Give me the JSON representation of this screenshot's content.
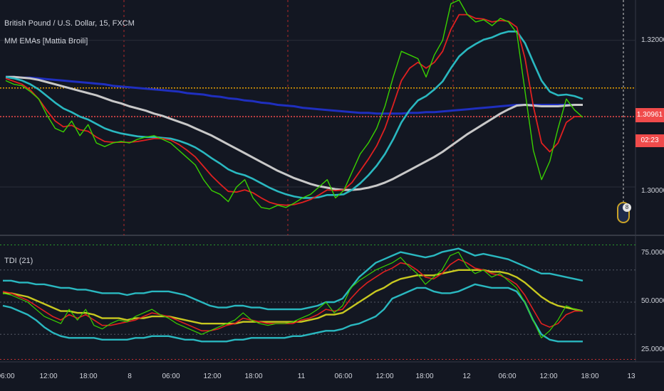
{
  "header": {
    "symbol_title": "British Pound / U.S. Dollar, 15, FXCM",
    "indicator_1": "MM EMAs [Mattia Broili]",
    "indicator_2": "TDI (21)"
  },
  "price_panel": {
    "y_axis_labels": [
      "1.32000",
      "1.30000"
    ],
    "current_price": "1.30961",
    "countdown": "02:23",
    "event_badge": "8"
  },
  "tdi_panel": {
    "y_axis_labels": [
      "75.0000",
      "50.0000",
      "25.0000"
    ]
  },
  "x_axis_labels": [
    "06:00",
    "12:00",
    "18:00",
    "8",
    "06:00",
    "12:00",
    "18:00",
    "11",
    "06:00",
    "12:00",
    "18:00",
    "12",
    "06:00",
    "12:00",
    "18:00",
    "13"
  ],
  "colors": {
    "background": "#131722",
    "price_line_green": "#39d000",
    "ema_red": "#e02020",
    "ema_teal": "#2ab8c0",
    "ema_blue": "#1f2fbf",
    "ema_white": "#c8c8c8",
    "tdi_yellow": "#c8c820",
    "resistance_orange": "#e8a000",
    "price_red_dotted": "#f04b4b"
  },
  "chart_data": [
    {
      "type": "line",
      "title": "British Pound / U.S. Dollar, 15, FXCM",
      "x_ticks": [
        "06:00",
        "12:00",
        "18:00",
        "8",
        "06:00",
        "12:00",
        "18:00",
        "11",
        "06:00",
        "12:00",
        "18:00",
        "12",
        "06:00",
        "12:00",
        "18:00",
        "13"
      ],
      "ylim": [
        1.2935,
        1.3255
      ],
      "y_ticks": [
        1.3,
        1.32
      ],
      "series": [
        {
          "key": "price",
          "values": [
            1.3145,
            1.314,
            1.3138,
            1.313,
            1.312,
            1.3098,
            1.308,
            1.3075,
            1.309,
            1.307,
            1.3085,
            1.306,
            1.3055,
            1.306,
            1.3062,
            1.306,
            1.3065,
            1.3068,
            1.307,
            1.3065,
            1.306,
            1.305,
            1.304,
            1.303,
            1.301,
            1.2995,
            1.299,
            1.298,
            1.3,
            1.301,
            1.2985,
            1.2972,
            1.297,
            1.2975,
            1.2972,
            1.2978,
            1.2985,
            1.299,
            1.3,
            1.301,
            1.2985,
            1.2995,
            1.302,
            1.3045,
            1.306,
            1.308,
            1.311,
            1.315,
            1.3185,
            1.318,
            1.3175,
            1.315,
            1.318,
            1.32,
            1.325,
            1.3255,
            1.3235,
            1.3225,
            1.3228,
            1.322,
            1.323,
            1.3225,
            1.321,
            1.313,
            1.305,
            1.301,
            1.3035,
            1.308,
            1.312,
            1.3105,
            1.3095
          ]
        },
        {
          "key": "ema_red",
          "values": [
            1.3148,
            1.3144,
            1.314,
            1.3132,
            1.312,
            1.3104,
            1.309,
            1.3082,
            1.3084,
            1.3078,
            1.3076,
            1.3068,
            1.3062,
            1.3061,
            1.3061,
            1.3061,
            1.3062,
            1.3064,
            1.3066,
            1.3066,
            1.3064,
            1.3058,
            1.305,
            1.3041,
            1.3028,
            1.3015,
            1.3004,
            1.2994,
            1.2993,
            1.2996,
            1.2992,
            1.2985,
            1.2979,
            1.2976,
            1.2975,
            1.2976,
            1.2979,
            1.2983,
            1.2989,
            1.2996,
            1.2995,
            1.2996,
            1.3006,
            1.3022,
            1.3038,
            1.3056,
            1.308,
            1.3112,
            1.3145,
            1.3162,
            1.317,
            1.3162,
            1.317,
            1.3185,
            1.3215,
            1.3235,
            1.3235,
            1.323,
            1.3229,
            1.3225,
            1.3227,
            1.3226,
            1.3218,
            1.3175,
            1.311,
            1.306,
            1.3048,
            1.306,
            1.3088,
            1.3096,
            1.3096
          ]
        },
        {
          "key": "ema_teal",
          "values": [
            1.315,
            1.3148,
            1.3145,
            1.314,
            1.3133,
            1.3124,
            1.3115,
            1.3107,
            1.3102,
            1.3096,
            1.3092,
            1.3086,
            1.308,
            1.3076,
            1.3073,
            1.3071,
            1.3069,
            1.3068,
            1.3068,
            1.3067,
            1.3066,
            1.3063,
            1.3059,
            1.3054,
            1.3047,
            1.3039,
            1.3032,
            1.3024,
            1.3019,
            1.3016,
            1.3011,
            1.3005,
            1.2999,
            1.2994,
            1.299,
            1.2987,
            1.2985,
            1.2985,
            1.2986,
            1.2989,
            1.2989,
            1.299,
            1.2996,
            1.3005,
            1.3016,
            1.3029,
            1.3045,
            1.3065,
            1.3088,
            1.3105,
            1.3118,
            1.3124,
            1.3133,
            1.3144,
            1.3162,
            1.3178,
            1.3188,
            1.3195,
            1.3201,
            1.3204,
            1.3209,
            1.3212,
            1.3212,
            1.3196,
            1.317,
            1.3145,
            1.313,
            1.3125,
            1.3126,
            1.3124,
            1.312
          ]
        },
        {
          "key": "ema_white",
          "values": [
            1.315,
            1.315,
            1.3149,
            1.3148,
            1.3146,
            1.3143,
            1.314,
            1.3137,
            1.3134,
            1.3131,
            1.3128,
            1.3125,
            1.3121,
            1.3117,
            1.3114,
            1.311,
            1.3107,
            1.3104,
            1.31,
            1.3097,
            1.3093,
            1.3089,
            1.3085,
            1.308,
            1.3075,
            1.307,
            1.3064,
            1.3058,
            1.3052,
            1.3046,
            1.304,
            1.3034,
            1.3028,
            1.3022,
            1.3017,
            1.3012,
            1.3008,
            1.3004,
            1.3001,
            1.2999,
            1.2997,
            1.2996,
            1.2996,
            1.2997,
            1.2999,
            1.3002,
            1.3006,
            1.3011,
            1.3017,
            1.3023,
            1.3029,
            1.3035,
            1.3041,
            1.3048,
            1.3056,
            1.3064,
            1.3072,
            1.3079,
            1.3086,
            1.3093,
            1.31,
            1.3106,
            1.3111,
            1.3112,
            1.3111,
            1.311,
            1.311,
            1.311,
            1.3111,
            1.3112,
            1.3112
          ]
        },
        {
          "key": "ema_blue",
          "values": [
            1.315,
            1.315,
            1.3149,
            1.3149,
            1.3148,
            1.3147,
            1.3146,
            1.3145,
            1.3144,
            1.3143,
            1.3142,
            1.3141,
            1.314,
            1.3138,
            1.3137,
            1.3136,
            1.3135,
            1.3134,
            1.3133,
            1.3132,
            1.3131,
            1.313,
            1.3128,
            1.3127,
            1.3126,
            1.3124,
            1.3123,
            1.3121,
            1.312,
            1.3118,
            1.3117,
            1.3115,
            1.3114,
            1.3112,
            1.3111,
            1.311,
            1.3108,
            1.3107,
            1.3106,
            1.3105,
            1.3104,
            1.3103,
            1.3102,
            1.3101,
            1.3101,
            1.31,
            1.31,
            1.31,
            1.31,
            1.3101,
            1.3101,
            1.3102,
            1.3102,
            1.3103,
            1.3104,
            1.3105,
            1.3106,
            1.3107,
            1.3108,
            1.3109,
            1.311,
            1.3111,
            1.3112,
            1.3112,
            1.3112,
            1.3112,
            1.3112,
            1.3112,
            1.3112,
            1.3112,
            1.3112
          ]
        }
      ],
      "horizontal_levels": [
        {
          "value": 1.3135,
          "style": "dotted-orange"
        },
        {
          "value": 1.3096,
          "style": "dotted-red"
        }
      ]
    },
    {
      "type": "line",
      "title": "TDI (21)",
      "ylim": [
        17,
        85
      ],
      "y_ticks": [
        25,
        50,
        75
      ],
      "levels": [
        82,
        68,
        50,
        32,
        18
      ],
      "series": [
        {
          "key": "rsi_green",
          "values": [
            55,
            54,
            52,
            50,
            46,
            42,
            40,
            38,
            46,
            40,
            46,
            37,
            35,
            38,
            40,
            39,
            42,
            44,
            46,
            43,
            41,
            38,
            36,
            34,
            32,
            34,
            36,
            38,
            40,
            44,
            40,
            38,
            37,
            38,
            38,
            39,
            41,
            43,
            46,
            50,
            44,
            48,
            58,
            62,
            65,
            68,
            70,
            72,
            75,
            70,
            66,
            60,
            64,
            68,
            76,
            78,
            70,
            66,
            68,
            64,
            66,
            62,
            58,
            50,
            40,
            30,
            34,
            40,
            48,
            46,
            45
          ]
        },
        {
          "key": "signal_red",
          "values": [
            56,
            55,
            53,
            51,
            48,
            45,
            42,
            40,
            43,
            41,
            43,
            40,
            37,
            37,
            38,
            39,
            40,
            42,
            44,
            43,
            42,
            40,
            38,
            36,
            34,
            34,
            35,
            37,
            38,
            41,
            40,
            39,
            38,
            38,
            38,
            38,
            40,
            41,
            43,
            46,
            45,
            46,
            52,
            57,
            61,
            64,
            67,
            69,
            72,
            71,
            68,
            64,
            63,
            66,
            71,
            74,
            72,
            69,
            68,
            66,
            65,
            63,
            60,
            54,
            46,
            38,
            36,
            38,
            43,
            45,
            45
          ]
        },
        {
          "key": "base_yellow",
          "values": [
            55,
            55,
            54,
            53,
            51,
            49,
            47,
            45,
            45,
            44,
            44,
            43,
            41,
            41,
            41,
            40,
            41,
            41,
            42,
            42,
            42,
            41,
            40,
            39,
            38,
            38,
            38,
            38,
            38,
            39,
            39,
            39,
            39,
            39,
            39,
            39,
            39,
            40,
            41,
            43,
            43,
            44,
            47,
            50,
            53,
            56,
            58,
            61,
            63,
            64,
            65,
            65,
            65,
            66,
            67,
            68,
            68,
            68,
            68,
            67,
            67,
            66,
            64,
            61,
            57,
            53,
            50,
            48,
            47,
            46,
            45
          ]
        },
        {
          "key": "band_upper_teal",
          "values": [
            62,
            62,
            61,
            61,
            60,
            60,
            59,
            58,
            58,
            57,
            57,
            56,
            55,
            55,
            55,
            54,
            55,
            55,
            56,
            56,
            56,
            55,
            54,
            52,
            50,
            48,
            47,
            47,
            48,
            48,
            47,
            47,
            46,
            46,
            46,
            46,
            46,
            47,
            48,
            50,
            50,
            52,
            58,
            64,
            68,
            72,
            74,
            76,
            78,
            77,
            76,
            75,
            76,
            78,
            79,
            80,
            78,
            76,
            77,
            76,
            75,
            74,
            72,
            70,
            68,
            66,
            66,
            65,
            64,
            63,
            62
          ]
        },
        {
          "key": "band_lower_teal",
          "values": [
            48,
            47,
            45,
            43,
            40,
            36,
            33,
            31,
            30,
            30,
            30,
            30,
            29,
            29,
            29,
            29,
            30,
            30,
            31,
            31,
            31,
            30,
            29,
            29,
            28,
            28,
            28,
            28,
            29,
            29,
            30,
            30,
            30,
            30,
            30,
            31,
            31,
            32,
            33,
            34,
            34,
            35,
            37,
            38,
            40,
            42,
            46,
            52,
            54,
            56,
            58,
            58,
            56,
            55,
            55,
            56,
            58,
            60,
            59,
            58,
            58,
            58,
            56,
            50,
            40,
            32,
            29,
            28,
            28,
            28,
            28
          ]
        }
      ]
    }
  ]
}
